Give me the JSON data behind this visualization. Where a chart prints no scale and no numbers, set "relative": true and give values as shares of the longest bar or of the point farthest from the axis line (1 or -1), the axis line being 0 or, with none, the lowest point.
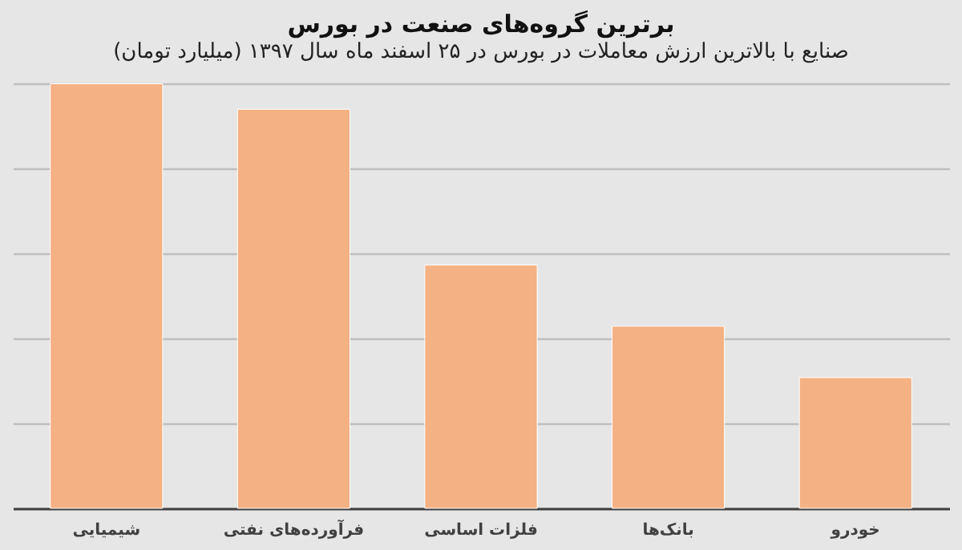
{
  "chart_data": {
    "type": "bar",
    "title": "برترین گروه‌های صنعت در بورس",
    "subtitle": "صنایع با بالاترین ارزش معاملات در بورس در ۲۵ اسفند ماه سال ۱۳۹۷ (میلیارد تومان)",
    "categories": [
      "شیمیایی",
      "فرآورده‌های نفتی",
      "فلزات اساسی",
      "بانک‌ها",
      "خودرو"
    ],
    "values": [
      1,
      0.94,
      0.573,
      0.429,
      0.308
    ],
    "color": "#f4b183",
    "relative": true,
    "grid": "y"
  }
}
